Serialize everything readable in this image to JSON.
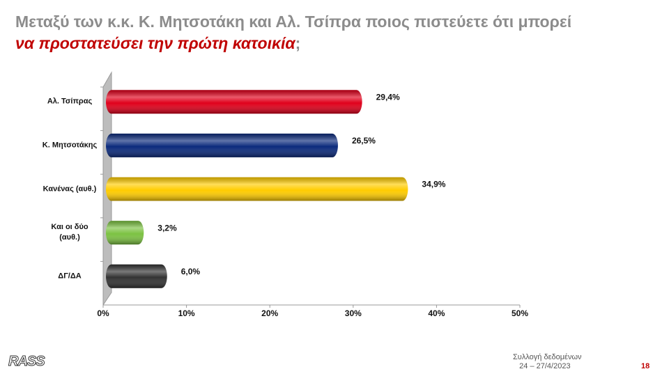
{
  "chart_data": {
    "type": "bar",
    "orientation": "horizontal",
    "title": [
      "Μεταξύ των κ.κ. Κ. Μητσοτάκη και Αλ. Τσίπρα ποιος πιστεύετε ότι μπορεί",
      "να προστατεύσει την πρώτη κατοικία",
      ";"
    ],
    "categories": [
      "Αλ. Τσίπρας",
      "Κ. Μητσοτάκης",
      "Κανένας (αυθ.)",
      "Και οι δύο (αυθ.)",
      "ΔΓ/ΔΑ"
    ],
    "values": [
      29.4,
      26.5,
      34.9,
      3.2,
      6.0
    ],
    "value_labels": [
      "29,4%",
      "26,5%",
      "34,9%",
      "3,2%",
      "6,0%"
    ],
    "colors": [
      "#e0001b",
      "#0b2a7c",
      "#ffcc00",
      "#7cc242",
      "#333333"
    ],
    "xlim": [
      0,
      50
    ],
    "xticks": [
      {
        "value": 0,
        "label": "0%"
      },
      {
        "value": 10,
        "label": "10%"
      },
      {
        "value": 20,
        "label": "20%"
      },
      {
        "value": 30,
        "label": "30%"
      },
      {
        "value": 40,
        "label": "40%"
      },
      {
        "value": 50,
        "label": "50%"
      }
    ]
  },
  "footer": {
    "logo": "RASS",
    "note": "Συλλογή δεδομένων",
    "dates": "24 – 27/4/2023",
    "page": "18"
  }
}
